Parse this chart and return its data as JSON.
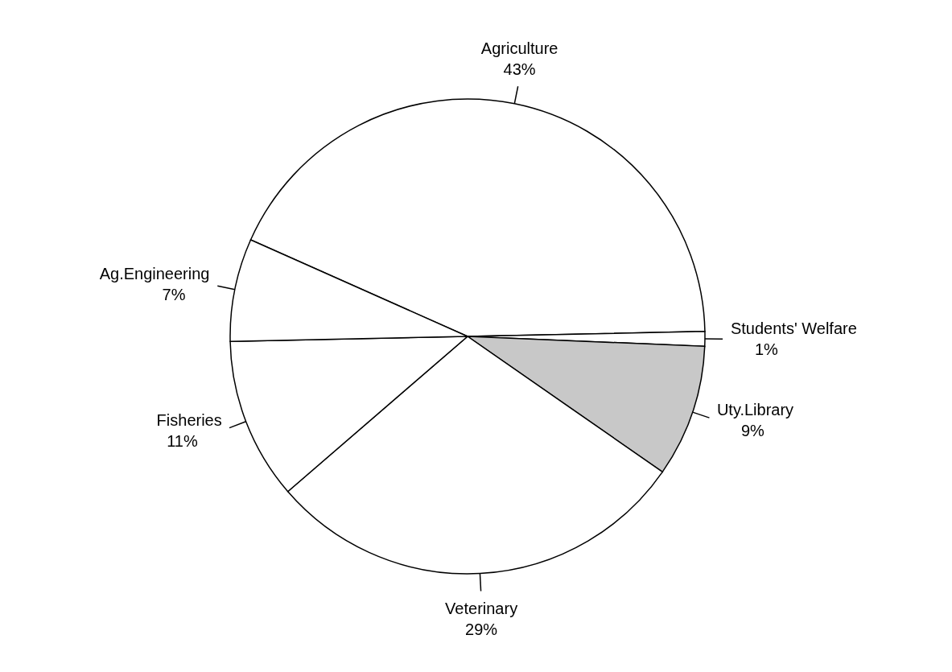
{
  "chart_data": {
    "type": "pie",
    "categories": [
      "Agriculture",
      "Students' Welfare",
      "Uty.Library",
      "Veterinary",
      "Fisheries",
      "Ag.Engineering"
    ],
    "values": [
      43,
      1,
      9,
      29,
      11,
      7
    ],
    "value_labels": [
      "43%",
      "1%",
      "9%",
      "29%",
      "11%",
      "7%"
    ],
    "colors": [
      "#ffffff",
      "#ffffff",
      "#c8c8c8",
      "#ffffff",
      "#ffffff",
      "#ffffff"
    ],
    "legend": false
  }
}
